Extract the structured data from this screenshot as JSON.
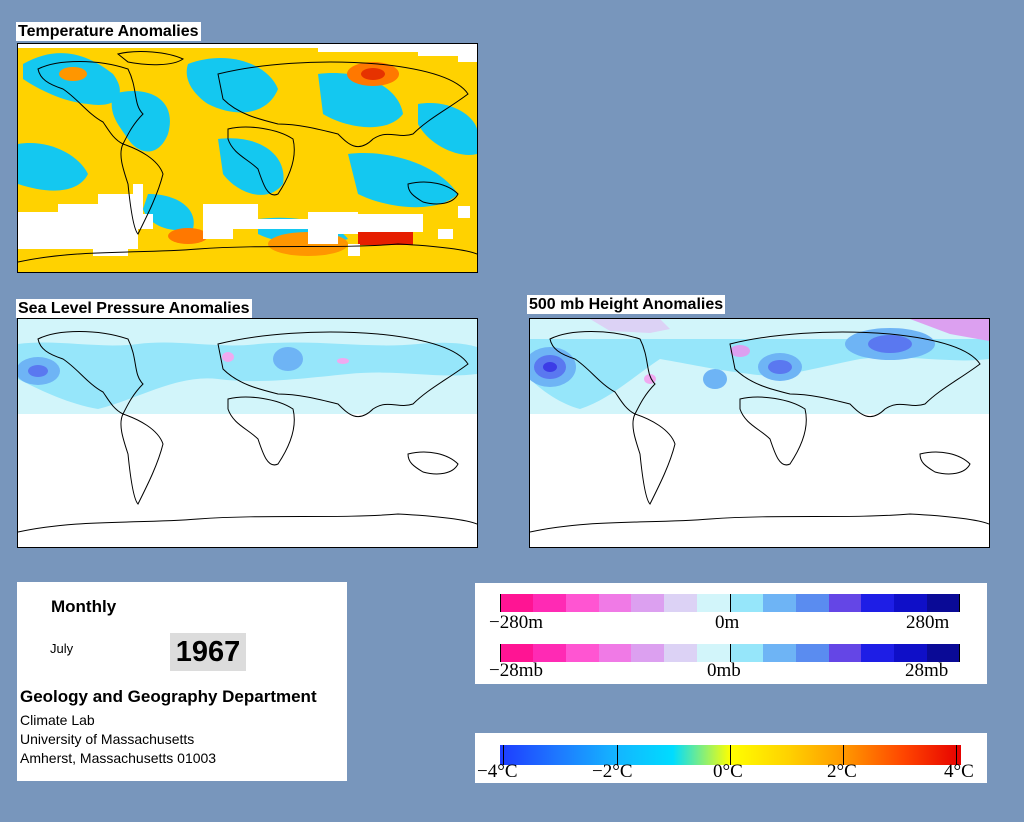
{
  "maps": {
    "temperature": {
      "title": "Temperature Anomalies"
    },
    "slp": {
      "title": "Sea Level Pressure Anomalies"
    },
    "height500": {
      "title": "500 mb Height Anomalies"
    }
  },
  "info": {
    "period": "Monthly",
    "month": "July",
    "year": "1967",
    "department": "Geology and Geography Department",
    "lab": "Climate Lab",
    "university": "University of Massachusetts",
    "address": "Amherst, Massachusetts 01003"
  },
  "legends": {
    "height": {
      "min": "−280m",
      "mid": "0m",
      "max": "280m"
    },
    "pressure": {
      "min": "−28mb",
      "mid": "0mb",
      "max": "28mb"
    },
    "temperature": {
      "t1": "−4°C",
      "t2": "−2°C",
      "t3": "0°C",
      "t4": "2°C",
      "t5": "4°C"
    }
  },
  "colors": {
    "background": "#7896bc",
    "heightScale": [
      "#ff1493",
      "#ff2ab4",
      "#ff55d2",
      "#f07ae6",
      "#dca0f0",
      "#dcd2f5",
      "#d2f5fa",
      "#96e6fa",
      "#6eb4f5",
      "#5a8cf0",
      "#6446e6",
      "#1e1ee6",
      "#0f0fc8",
      "#0a0a96"
    ],
    "tempScale": [
      "#1e3cff",
      "#1e78ff",
      "#14b4ff",
      "#00dcff",
      "#ffff00",
      "#ffd200",
      "#ff9600",
      "#ff4600",
      "#e60000"
    ]
  }
}
